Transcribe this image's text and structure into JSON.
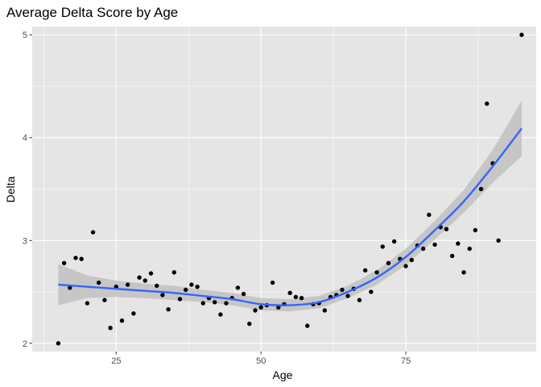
{
  "chart_data": {
    "type": "scatter",
    "title": "Average Delta Score by Age",
    "xlabel": "Age",
    "ylabel": "Delta",
    "xlim": [
      10.5,
      97.5
    ],
    "ylim": [
      1.92,
      5.08
    ],
    "x_ticks": [
      25,
      50,
      75
    ],
    "y_ticks": [
      2,
      3,
      4,
      5
    ],
    "grid": true,
    "legend": "none",
    "colors": {
      "panel": "#e5e5e5",
      "grid_major": "#ffffff",
      "points": "#000000",
      "smooth_line": "#3366ff",
      "ribbon": "#c1c1c1"
    },
    "points": [
      [
        15,
        2.0
      ],
      [
        16,
        2.78
      ],
      [
        17,
        2.54
      ],
      [
        18,
        2.83
      ],
      [
        19,
        2.82
      ],
      [
        20,
        2.39
      ],
      [
        21,
        3.08
      ],
      [
        22,
        2.59
      ],
      [
        23,
        2.42
      ],
      [
        24,
        2.15
      ],
      [
        25,
        2.55
      ],
      [
        26,
        2.22
      ],
      [
        27,
        2.57
      ],
      [
        28,
        2.29
      ],
      [
        29,
        2.64
      ],
      [
        30,
        2.61
      ],
      [
        31,
        2.68
      ],
      [
        32,
        2.56
      ],
      [
        33,
        2.47
      ],
      [
        34,
        2.33
      ],
      [
        35,
        2.69
      ],
      [
        36,
        2.43
      ],
      [
        37,
        2.52
      ],
      [
        38,
        2.57
      ],
      [
        39,
        2.55
      ],
      [
        40,
        2.39
      ],
      [
        41,
        2.44
      ],
      [
        42,
        2.4
      ],
      [
        43,
        2.28
      ],
      [
        44,
        2.39
      ],
      [
        45,
        2.44
      ],
      [
        46,
        2.54
      ],
      [
        47,
        2.48
      ],
      [
        48,
        2.19
      ],
      [
        49,
        2.32
      ],
      [
        50,
        2.35
      ],
      [
        51,
        2.37
      ],
      [
        52,
        2.59
      ],
      [
        53,
        2.35
      ],
      [
        54,
        2.38
      ],
      [
        55,
        2.49
      ],
      [
        56,
        2.45
      ],
      [
        57,
        2.44
      ],
      [
        58,
        2.17
      ],
      [
        59,
        2.38
      ],
      [
        60,
        2.39
      ],
      [
        61,
        2.32
      ],
      [
        62,
        2.45
      ],
      [
        63,
        2.47
      ],
      [
        64,
        2.52
      ],
      [
        65,
        2.46
      ],
      [
        66,
        2.53
      ],
      [
        67,
        2.42
      ],
      [
        68,
        2.71
      ],
      [
        69,
        2.5
      ],
      [
        70,
        2.69
      ],
      [
        71,
        2.94
      ],
      [
        72,
        2.78
      ],
      [
        73,
        2.99
      ],
      [
        74,
        2.82
      ],
      [
        75,
        2.75
      ],
      [
        76,
        2.81
      ],
      [
        77,
        2.95
      ],
      [
        78,
        2.92
      ],
      [
        79,
        3.25
      ],
      [
        80,
        2.96
      ],
      [
        81,
        3.13
      ],
      [
        82,
        3.11
      ],
      [
        83,
        2.85
      ],
      [
        84,
        2.97
      ],
      [
        85,
        2.69
      ],
      [
        86,
        2.92
      ],
      [
        87,
        3.1
      ],
      [
        88,
        3.5
      ],
      [
        89,
        4.33
      ],
      [
        90,
        3.75
      ],
      [
        91,
        3.0
      ],
      [
        95,
        5.0
      ]
    ],
    "smooth": {
      "method": "loess",
      "x": [
        15,
        20,
        25,
        30,
        35,
        40,
        45,
        50,
        55,
        60,
        65,
        70,
        75,
        80,
        85,
        90,
        95
      ],
      "y": [
        2.57,
        2.55,
        2.53,
        2.51,
        2.49,
        2.46,
        2.43,
        2.38,
        2.37,
        2.4,
        2.5,
        2.64,
        2.84,
        3.1,
        3.38,
        3.72,
        4.09
      ],
      "lower": [
        2.37,
        2.44,
        2.45,
        2.44,
        2.42,
        2.4,
        2.37,
        2.32,
        2.31,
        2.34,
        2.44,
        2.57,
        2.76,
        3.01,
        3.27,
        3.56,
        3.82
      ],
      "upper": [
        2.77,
        2.66,
        2.61,
        2.58,
        2.56,
        2.52,
        2.49,
        2.44,
        2.43,
        2.46,
        2.56,
        2.71,
        2.92,
        3.19,
        3.49,
        3.88,
        4.36
      ]
    }
  }
}
